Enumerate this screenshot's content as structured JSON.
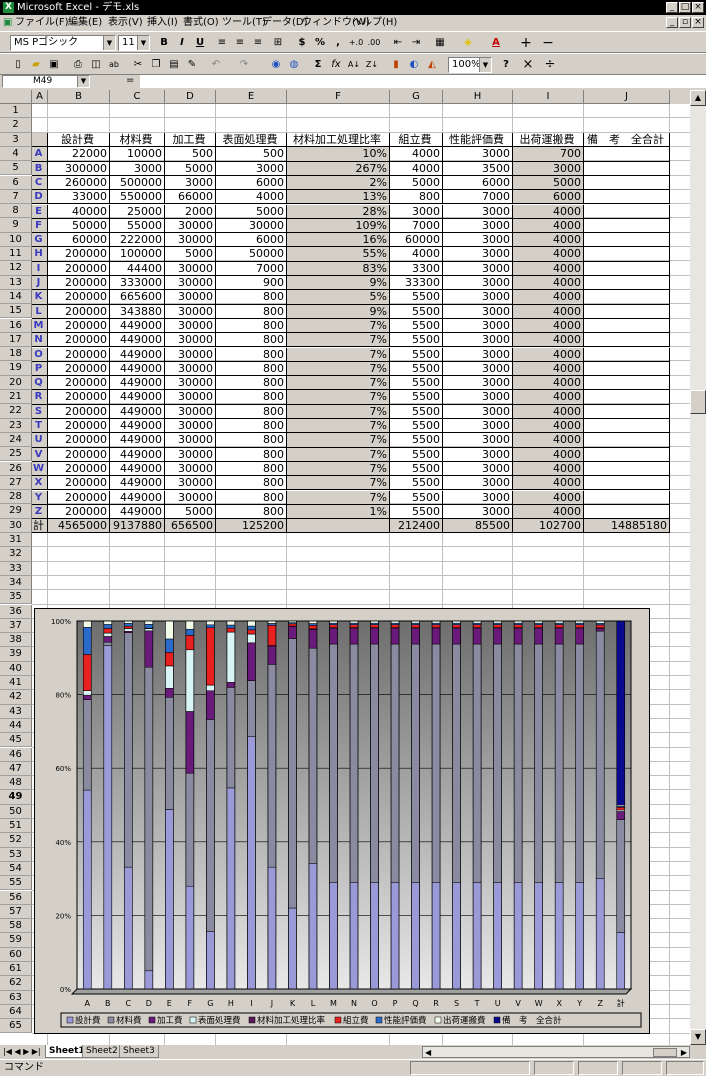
{
  "window": {
    "title": "Microsoft Excel - デモ.xls"
  },
  "menu": [
    "ファイル(F)",
    "編集(E)",
    "表示(V)",
    "挿入(I)",
    "書式(O)",
    "ツール(T)",
    "データ(D)",
    "ウィンドウ(W)",
    "ヘルプ(H)"
  ],
  "format_bar": {
    "font": "MS Pゴシック",
    "size": "11",
    "zoom": "100%"
  },
  "formula_bar": {
    "name_box": "M49",
    "eq": "="
  },
  "columns": [
    "A",
    "B",
    "C",
    "D",
    "E",
    "F",
    "G",
    "H",
    "I",
    "J"
  ],
  "headers": [
    "設計費",
    "材料費",
    "加工費",
    "表面処理費",
    "材料加工処理比率",
    "組立費",
    "性能評価費",
    "出荷運搬費",
    "備　考　全合計"
  ],
  "rows": [
    {
      "label": "A",
      "v": [
        "22000",
        "10000",
        "500",
        "500",
        "10%",
        "4000",
        "3000",
        "700"
      ]
    },
    {
      "label": "B",
      "v": [
        "300000",
        "3000",
        "5000",
        "3000",
        "267%",
        "4000",
        "3500",
        "3000"
      ]
    },
    {
      "label": "C",
      "v": [
        "260000",
        "500000",
        "3000",
        "6000",
        "2%",
        "5000",
        "6000",
        "5000"
      ]
    },
    {
      "label": "D",
      "v": [
        "33000",
        "550000",
        "66000",
        "4000",
        "13%",
        "800",
        "7000",
        "6000"
      ]
    },
    {
      "label": "E",
      "v": [
        "40000",
        "25000",
        "2000",
        "5000",
        "28%",
        "3000",
        "3000",
        "4000"
      ]
    },
    {
      "label": "F",
      "v": [
        "50000",
        "55000",
        "30000",
        "30000",
        "109%",
        "7000",
        "3000",
        "4000"
      ]
    },
    {
      "label": "G",
      "v": [
        "60000",
        "222000",
        "30000",
        "6000",
        "16%",
        "60000",
        "3000",
        "4000"
      ]
    },
    {
      "label": "H",
      "v": [
        "200000",
        "100000",
        "5000",
        "50000",
        "55%",
        "4000",
        "3000",
        "4000"
      ]
    },
    {
      "label": "I",
      "v": [
        "200000",
        "44400",
        "30000",
        "7000",
        "83%",
        "3300",
        "3000",
        "4000"
      ]
    },
    {
      "label": "J",
      "v": [
        "200000",
        "333000",
        "30000",
        "900",
        "9%",
        "33300",
        "3000",
        "4000"
      ]
    },
    {
      "label": "K",
      "v": [
        "200000",
        "665600",
        "30000",
        "800",
        "5%",
        "5500",
        "3000",
        "4000"
      ]
    },
    {
      "label": "L",
      "v": [
        "200000",
        "343880",
        "30000",
        "800",
        "9%",
        "5500",
        "3000",
        "4000"
      ]
    },
    {
      "label": "M",
      "v": [
        "200000",
        "449000",
        "30000",
        "800",
        "7%",
        "5500",
        "3000",
        "4000"
      ]
    },
    {
      "label": "N",
      "v": [
        "200000",
        "449000",
        "30000",
        "800",
        "7%",
        "5500",
        "3000",
        "4000"
      ]
    },
    {
      "label": "O",
      "v": [
        "200000",
        "449000",
        "30000",
        "800",
        "7%",
        "5500",
        "3000",
        "4000"
      ]
    },
    {
      "label": "P",
      "v": [
        "200000",
        "449000",
        "30000",
        "800",
        "7%",
        "5500",
        "3000",
        "4000"
      ]
    },
    {
      "label": "Q",
      "v": [
        "200000",
        "449000",
        "30000",
        "800",
        "7%",
        "5500",
        "3000",
        "4000"
      ]
    },
    {
      "label": "R",
      "v": [
        "200000",
        "449000",
        "30000",
        "800",
        "7%",
        "5500",
        "3000",
        "4000"
      ]
    },
    {
      "label": "S",
      "v": [
        "200000",
        "449000",
        "30000",
        "800",
        "7%",
        "5500",
        "3000",
        "4000"
      ]
    },
    {
      "label": "T",
      "v": [
        "200000",
        "449000",
        "30000",
        "800",
        "7%",
        "5500",
        "3000",
        "4000"
      ]
    },
    {
      "label": "U",
      "v": [
        "200000",
        "449000",
        "30000",
        "800",
        "7%",
        "5500",
        "3000",
        "4000"
      ]
    },
    {
      "label": "V",
      "v": [
        "200000",
        "449000",
        "30000",
        "800",
        "7%",
        "5500",
        "3000",
        "4000"
      ]
    },
    {
      "label": "W",
      "v": [
        "200000",
        "449000",
        "30000",
        "800",
        "7%",
        "5500",
        "3000",
        "4000"
      ]
    },
    {
      "label": "X",
      "v": [
        "200000",
        "449000",
        "30000",
        "800",
        "7%",
        "5500",
        "3000",
        "4000"
      ]
    },
    {
      "label": "Y",
      "v": [
        "200000",
        "449000",
        "30000",
        "800",
        "7%",
        "5500",
        "3000",
        "4000"
      ]
    },
    {
      "label": "Z",
      "v": [
        "200000",
        "449000",
        "5000",
        "800",
        "1%",
        "5500",
        "3000",
        "4000"
      ]
    }
  ],
  "total": {
    "label": "計",
    "v": [
      "4565000",
      "9137880",
      "656500",
      "125200",
      "",
      "212400",
      "85500",
      "102700",
      "14885180"
    ]
  },
  "sheets": [
    "Sheet1",
    "Sheet2",
    "Sheet3"
  ],
  "status": "コマンド",
  "chart_data": {
    "type": "bar",
    "stacked": "100%",
    "categories": [
      "A",
      "B",
      "C",
      "D",
      "E",
      "F",
      "G",
      "H",
      "I",
      "J",
      "K",
      "L",
      "M",
      "N",
      "O",
      "P",
      "Q",
      "R",
      "S",
      "T",
      "U",
      "V",
      "W",
      "X",
      "Y",
      "Z",
      "計"
    ],
    "ylim": [
      0,
      100
    ],
    "yticks": [
      "0%",
      "20%",
      "40%",
      "60%",
      "80%",
      "100%"
    ],
    "legend_position": "bottom",
    "series": [
      {
        "name": "設計費",
        "color": "#9a9ad8",
        "values": [
          22000,
          300000,
          260000,
          33000,
          40000,
          50000,
          60000,
          200000,
          200000,
          200000,
          200000,
          200000,
          200000,
          200000,
          200000,
          200000,
          200000,
          200000,
          200000,
          200000,
          200000,
          200000,
          200000,
          200000,
          200000,
          200000,
          4565000
        ]
      },
      {
        "name": "材料費",
        "color": "#8a8aa0",
        "values": [
          10000,
          3000,
          500000,
          550000,
          25000,
          55000,
          222000,
          100000,
          44400,
          333000,
          665600,
          343880,
          449000,
          449000,
          449000,
          449000,
          449000,
          449000,
          449000,
          449000,
          449000,
          449000,
          449000,
          449000,
          449000,
          449000,
          9137880
        ]
      },
      {
        "name": "加工費",
        "color": "#6a1a7a",
        "values": [
          500,
          5000,
          3000,
          66000,
          2000,
          30000,
          30000,
          5000,
          30000,
          30000,
          30000,
          30000,
          30000,
          30000,
          30000,
          30000,
          30000,
          30000,
          30000,
          30000,
          30000,
          30000,
          30000,
          30000,
          30000,
          5000,
          656500
        ]
      },
      {
        "name": "表面処理費",
        "color": "#d8f4f4",
        "values": [
          500,
          3000,
          6000,
          4000,
          5000,
          30000,
          6000,
          50000,
          7000,
          900,
          800,
          800,
          800,
          800,
          800,
          800,
          800,
          800,
          800,
          800,
          800,
          800,
          800,
          800,
          800,
          800,
          125200
        ]
      },
      {
        "name": "材料加工処理比率",
        "color": "#5a1a5a",
        "values": [
          0.1,
          2.67,
          0.02,
          0.13,
          0.28,
          1.09,
          0.16,
          0.55,
          0.83,
          0.09,
          0.05,
          0.09,
          0.07,
          0.07,
          0.07,
          0.07,
          0.07,
          0.07,
          0.07,
          0.07,
          0.07,
          0.07,
          0.07,
          0.07,
          0.07,
          0.01,
          0
        ]
      },
      {
        "name": "組立費",
        "color": "#e82020",
        "values": [
          4000,
          4000,
          5000,
          800,
          3000,
          7000,
          60000,
          4000,
          3300,
          33300,
          5500,
          5500,
          5500,
          5500,
          5500,
          5500,
          5500,
          5500,
          5500,
          5500,
          5500,
          5500,
          5500,
          5500,
          5500,
          5500,
          212400
        ]
      },
      {
        "name": "性能評価費",
        "color": "#2a6ac8",
        "values": [
          3000,
          3500,
          6000,
          7000,
          3000,
          3000,
          3000,
          3000,
          3000,
          3000,
          3000,
          3000,
          3000,
          3000,
          3000,
          3000,
          3000,
          3000,
          3000,
          3000,
          3000,
          3000,
          3000,
          3000,
          3000,
          3000,
          85500
        ]
      },
      {
        "name": "出荷運搬費",
        "color": "#f0fbe8",
        "values": [
          700,
          3000,
          5000,
          6000,
          4000,
          4000,
          4000,
          4000,
          4000,
          4000,
          4000,
          4000,
          4000,
          4000,
          4000,
          4000,
          4000,
          4000,
          4000,
          4000,
          4000,
          4000,
          4000,
          4000,
          4000,
          4000,
          102700
        ]
      },
      {
        "name": "備　考　全合計",
        "color": "#0a0a90",
        "values": [
          0,
          0,
          0,
          0,
          0,
          0,
          0,
          0,
          0,
          0,
          0,
          0,
          0,
          0,
          0,
          0,
          0,
          0,
          0,
          0,
          0,
          0,
          0,
          0,
          0,
          0,
          14885180
        ]
      }
    ]
  }
}
